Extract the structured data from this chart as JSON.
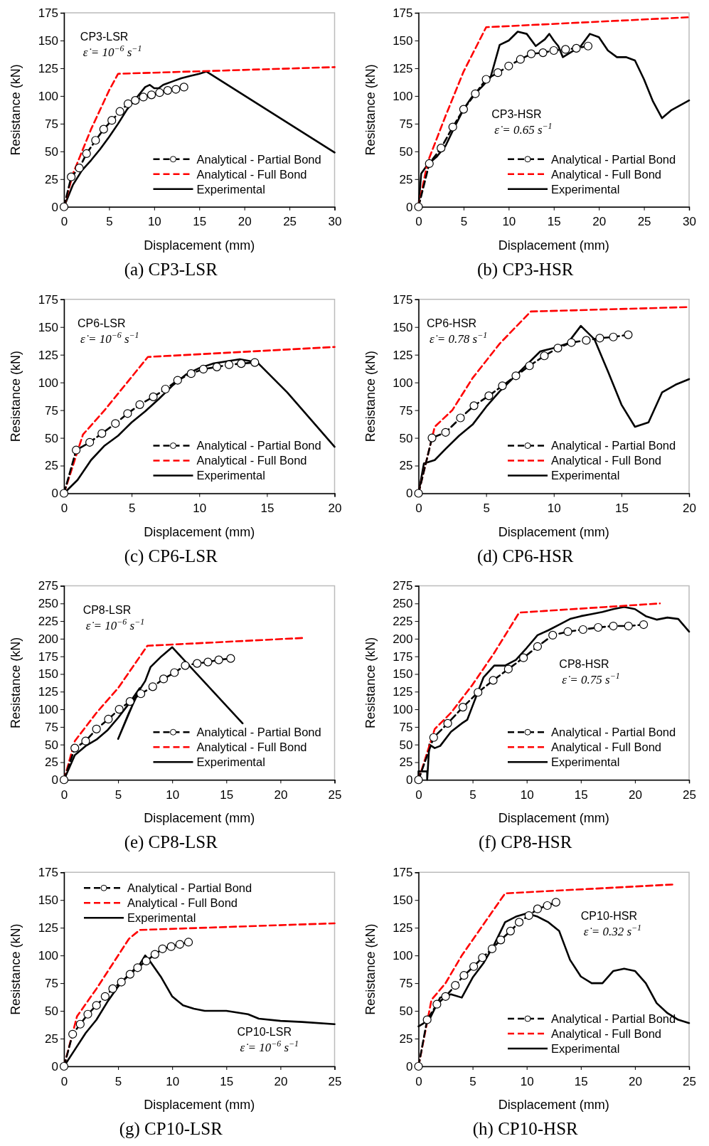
{
  "chart_data": [
    {
      "type": "line",
      "title": "(a) CP3-LSR",
      "xlabel": "Displacement (mm)",
      "ylabel": "Resistance (kN)",
      "annotations": [
        "CP3-LSR",
        "ε̇ = 10$^{−6}$ s$^{−1}$"
      ],
      "legend": "bottom right",
      "grid": false,
      "xlim": [
        0,
        30
      ],
      "ylim": [
        0,
        175
      ],
      "xticks": [
        0,
        5,
        10,
        15,
        20,
        25,
        30
      ],
      "yticks": [
        0,
        25,
        50,
        75,
        100,
        125,
        150,
        175
      ],
      "series": [
        {
          "name": "Analytical - Partial Bond",
          "color": "#000000",
          "line_style": "dashed",
          "marker": "circle",
          "x": [
            0,
            0.8,
            1.7,
            2.5,
            3.5,
            4.4,
            5.3,
            6.2,
            7.1,
            7.9,
            8.8,
            9.7,
            10.6,
            11.5,
            12.4,
            13.3
          ],
          "values": [
            0,
            27,
            35,
            48,
            60,
            70,
            78,
            86,
            93,
            96,
            99,
            101,
            103,
            105,
            106,
            108
          ]
        },
        {
          "name": "Analytical - Full Bond",
          "color": "#ff0000",
          "line_style": "dashed",
          "marker": "none",
          "x": [
            0,
            1,
            3,
            5,
            6,
            30
          ],
          "values": [
            0,
            30,
            70,
            105,
            120,
            126
          ]
        },
        {
          "name": "Experimental",
          "color": "#000000",
          "line_style": "solid",
          "marker": "none",
          "x": [
            0,
            1,
            2,
            3,
            4,
            5,
            6,
            7,
            8,
            9,
            9.5,
            10,
            10.5,
            11,
            12,
            13,
            14,
            15,
            15.8,
            30
          ],
          "values": [
            0,
            20,
            33,
            42,
            52,
            63,
            75,
            88,
            98,
            108,
            110,
            107,
            107,
            110,
            113,
            116,
            118,
            120,
            122,
            49
          ]
        }
      ]
    },
    {
      "type": "line",
      "title": "(b) CP3-HSR",
      "xlabel": "Displacement (mm)",
      "ylabel": "Resistance (kN)",
      "annotations": [
        "CP3-HSR",
        "ε̇ = 0.65 s$^{−1}$"
      ],
      "legend": "bottom right",
      "grid": false,
      "xlim": [
        0,
        30
      ],
      "ylim": [
        0,
        175
      ],
      "xticks": [
        0,
        5,
        10,
        15,
        20,
        25,
        30
      ],
      "yticks": [
        0,
        25,
        50,
        75,
        100,
        125,
        150,
        175
      ],
      "series": [
        {
          "name": "Analytical - Partial Bond",
          "color": "#000000",
          "line_style": "dashed",
          "marker": "circle",
          "x": [
            0,
            1.2,
            2.5,
            3.8,
            5,
            6.3,
            7.5,
            8.8,
            10,
            11.3,
            12.5,
            13.8,
            15,
            16.3,
            17.5,
            18.8
          ],
          "values": [
            0,
            39,
            53,
            72,
            88,
            102,
            115,
            121,
            127,
            133,
            138,
            139,
            141,
            142,
            143,
            145
          ]
        },
        {
          "name": "Analytical - Full Bond",
          "color": "#ff0000",
          "line_style": "dashed",
          "marker": "none",
          "x": [
            0,
            1,
            3,
            5,
            7.5,
            30
          ],
          "values": [
            0,
            40,
            82,
            122,
            162,
            171
          ]
        },
        {
          "name": "Experimental",
          "color": "#000000",
          "line_style": "solid",
          "marker": "none",
          "x": [
            0,
            0.3,
            1,
            2,
            3,
            4,
            5,
            6,
            7,
            8,
            9,
            10,
            11,
            12,
            13,
            14,
            14.5,
            15,
            15.5,
            16,
            17,
            18,
            19,
            20,
            21,
            22,
            23,
            24,
            25,
            26,
            27,
            28,
            30
          ],
          "values": [
            0,
            30,
            38,
            45,
            55,
            72,
            88,
            100,
            108,
            117,
            146,
            150,
            158,
            156,
            145,
            151,
            156,
            150,
            145,
            135,
            140,
            145,
            156,
            153,
            141,
            135,
            135,
            132,
            115,
            95,
            80,
            87,
            96
          ]
        }
      ]
    },
    {
      "type": "line",
      "title": "(c) CP6-LSR",
      "xlabel": "Displacement (mm)",
      "ylabel": "Resistance (kN)",
      "annotations": [
        "CP6-LSR",
        "ε̇ = 10$^{−6}$ s$^{−1}$"
      ],
      "legend": "bottom right",
      "grid": false,
      "xlim": [
        0,
        20
      ],
      "ylim": [
        0,
        175
      ],
      "xticks": [
        0,
        5,
        10,
        15,
        20
      ],
      "yticks": [
        0,
        25,
        50,
        75,
        100,
        125,
        150,
        175
      ],
      "series": [
        {
          "name": "Analytical - Partial Bond",
          "color": "#000000",
          "line_style": "dashed",
          "marker": "circle",
          "x": [
            0,
            0.9,
            1.9,
            2.8,
            3.8,
            4.7,
            5.6,
            6.6,
            7.5,
            8.4,
            9.4,
            10.3,
            11.3,
            12.2,
            13.1,
            14.1
          ],
          "values": [
            0,
            39,
            46,
            54,
            63,
            72,
            80,
            87,
            94,
            102,
            108,
            112,
            114,
            116,
            117,
            118
          ]
        },
        {
          "name": "Analytical - Full Bond",
          "color": "#ff0000",
          "line_style": "dashed",
          "marker": "none",
          "x": [
            0,
            1.4,
            3,
            6.2,
            20
          ],
          "values": [
            0,
            53,
            75,
            123,
            132
          ]
        },
        {
          "name": "Experimental",
          "color": "#000000",
          "line_style": "solid",
          "marker": "none",
          "x": [
            0,
            1,
            2,
            3,
            4,
            4.5,
            5,
            6,
            7,
            8,
            9,
            10,
            11,
            12,
            13,
            14.3,
            16.5,
            18,
            20
          ],
          "values": [
            0,
            12,
            30,
            43,
            52,
            58,
            64,
            74,
            85,
            97,
            107,
            113,
            117,
            119,
            121,
            118,
            91,
            70,
            42
          ]
        }
      ]
    },
    {
      "type": "line",
      "title": "(d) CP6-HSR",
      "xlabel": "Displacement (mm)",
      "ylabel": "Resistance (kN)",
      "annotations": [
        "CP6-HSR",
        "ε̇ = 0.78 s$^{−1}$"
      ],
      "legend": "bottom right",
      "grid": false,
      "xlim": [
        0,
        20
      ],
      "ylim": [
        0,
        175
      ],
      "xticks": [
        0,
        5,
        10,
        15,
        20
      ],
      "yticks": [
        0,
        25,
        50,
        75,
        100,
        125,
        150,
        175
      ],
      "series": [
        {
          "name": "Analytical - Partial Bond",
          "color": "#000000",
          "line_style": "dashed",
          "marker": "circle",
          "x": [
            0,
            1,
            2,
            3.1,
            4.1,
            5.2,
            6.2,
            7.2,
            8.2,
            9.3,
            10.3,
            11.3,
            12.4,
            13.4,
            14.4,
            15.5
          ],
          "values": [
            0,
            50,
            55,
            68,
            79,
            88,
            97,
            106,
            115,
            124,
            131,
            136,
            138,
            140,
            141,
            143
          ]
        },
        {
          "name": "Analytical - Full Bond",
          "color": "#ff0000",
          "line_style": "dashed",
          "marker": "none",
          "x": [
            0,
            1.2,
            2.5,
            4,
            6,
            8.3,
            20
          ],
          "values": [
            0,
            60,
            75,
            104,
            135,
            164,
            168
          ]
        },
        {
          "name": "Experimental",
          "color": "#000000",
          "line_style": "solid",
          "marker": "none",
          "x": [
            0,
            0.4,
            1.2,
            2,
            3,
            4,
            5,
            6,
            7,
            8,
            9,
            10,
            11,
            12,
            13,
            14,
            15,
            16,
            17,
            18,
            19,
            20
          ],
          "values": [
            0,
            27,
            30,
            40,
            52,
            62,
            78,
            92,
            104,
            116,
            128,
            131,
            135,
            151,
            139,
            110,
            80,
            60,
            64,
            91,
            98,
            103
          ]
        }
      ]
    },
    {
      "type": "line",
      "title": "(e) CP8-LSR",
      "xlabel": "Displacement (mm)",
      "ylabel": "Resistance (kN)",
      "annotations": [
        "CP8-LSR",
        "ε̇ = 10$^{−6}$ s$^{−1}$"
      ],
      "legend": "bottom right",
      "grid": false,
      "xlim": [
        0,
        25
      ],
      "ylim": [
        0,
        275
      ],
      "xticks": [
        0,
        5,
        10,
        15,
        20,
        25
      ],
      "yticks": [
        0,
        25,
        50,
        75,
        100,
        125,
        150,
        175,
        200,
        225,
        250,
        275
      ],
      "series": [
        {
          "name": "Analytical - Partial Bond",
          "color": "#000000",
          "line_style": "dashed",
          "marker": "circle",
          "x": [
            0,
            1,
            2,
            3,
            4.1,
            5.1,
            6.1,
            7.1,
            8.2,
            9.2,
            10.2,
            11.2,
            12.3,
            13.3,
            14.3,
            15.4
          ],
          "values": [
            0,
            45,
            55,
            72,
            86,
            100,
            111,
            122,
            132,
            143,
            152,
            162,
            165,
            167,
            170,
            172
          ]
        },
        {
          "name": "Analytical - Full Bond",
          "color": "#ff0000",
          "line_style": "dashed",
          "marker": "none",
          "x": [
            0,
            1,
            3,
            5,
            7.7,
            22
          ],
          "values": [
            0,
            55,
            95,
            130,
            190,
            201
          ]
        },
        {
          "name": "Experimental",
          "color": "#000000",
          "line_style": "solid",
          "marker": "none",
          "x": [
            0,
            1,
            2,
            3,
            4,
            5,
            6,
            7,
            5,
            6,
            7,
            7.5,
            8,
            9,
            10,
            16.5
          ],
          "values": [
            0,
            35,
            48,
            57,
            70,
            88,
            108,
            130,
            58,
            95,
            128,
            140,
            160,
            175,
            188,
            80
          ]
        }
      ]
    },
    {
      "type": "line",
      "title": "(f) CP8-HSR",
      "xlabel": "Displacement (mm)",
      "ylabel": "Resistance (kN)",
      "annotations": [
        "CP8-HSR",
        "ε̇ = 0.75 s$^{−1}$"
      ],
      "legend": "bottom right",
      "grid": false,
      "xlim": [
        0,
        25
      ],
      "ylim": [
        0,
        275
      ],
      "xticks": [
        0,
        5,
        10,
        15,
        20,
        25
      ],
      "yticks": [
        0,
        25,
        50,
        75,
        100,
        125,
        150,
        175,
        200,
        225,
        250,
        275
      ],
      "series": [
        {
          "name": "Analytical - Partial Bond",
          "color": "#000000",
          "line_style": "dashed",
          "marker": "circle",
          "x": [
            0,
            1.4,
            2.7,
            4.1,
            5.5,
            6.9,
            8.3,
            9.7,
            11,
            12.4,
            13.8,
            15.2,
            16.6,
            18,
            19.4,
            20.8
          ],
          "values": [
            0,
            60,
            80,
            103,
            124,
            141,
            157,
            173,
            189,
            205,
            210,
            213,
            216,
            218,
            218,
            220
          ]
        },
        {
          "name": "Analytical - Full Bond",
          "color": "#ff0000",
          "line_style": "dashed",
          "marker": "none",
          "x": [
            0,
            1.5,
            3,
            5,
            7,
            9.3,
            22.3
          ],
          "values": [
            0,
            72,
            95,
            135,
            180,
            237,
            250
          ]
        },
        {
          "name": "Experimental",
          "color": "#000000",
          "line_style": "solid",
          "marker": "none",
          "x": [
            0,
            0,
            0.8,
            0.8,
            1,
            1.5,
            2,
            3,
            4,
            4.5,
            5,
            6,
            7,
            8,
            9,
            10,
            11,
            12,
            13,
            14,
            15,
            16,
            17,
            18,
            19,
            20,
            21,
            22,
            23,
            24,
            25
          ],
          "values": [
            0,
            12,
            12,
            0,
            50,
            45,
            48,
            68,
            80,
            85,
            105,
            145,
            162,
            162,
            170,
            187,
            205,
            212,
            220,
            228,
            232,
            235,
            238,
            242,
            245,
            242,
            232,
            227,
            230,
            228,
            210
          ]
        }
      ]
    },
    {
      "type": "line",
      "title": "(g) CP10-LSR",
      "xlabel": "Displacement (mm)",
      "ylabel": "Resistance (kN)",
      "annotations": [
        "CP10-LSR",
        "ε̇ = 10$^{−6}$ s$^{−1}$"
      ],
      "legend": "top left",
      "grid": false,
      "xlim": [
        0,
        25
      ],
      "ylim": [
        0,
        175
      ],
      "xticks": [
        0,
        5,
        10,
        15,
        20,
        25
      ],
      "yticks": [
        0,
        25,
        50,
        75,
        100,
        125,
        150,
        175
      ],
      "series": [
        {
          "name": "Analytical - Partial Bond",
          "color": "#000000",
          "line_style": "dashed",
          "marker": "circle",
          "x": [
            0,
            0.8,
            1.5,
            2.2,
            3,
            3.8,
            4.5,
            5.3,
            6.1,
            6.8,
            7.6,
            8.4,
            9.1,
            9.9,
            10.7,
            11.5
          ],
          "values": [
            0,
            29,
            38,
            47,
            55,
            63,
            70,
            76,
            83,
            89,
            95,
            101,
            106,
            108,
            110,
            112
          ]
        },
        {
          "name": "Analytical - Full Bond",
          "color": "#ff0000",
          "line_style": "dashed",
          "marker": "none",
          "x": [
            0,
            1.2,
            3,
            6,
            7,
            25
          ],
          "values": [
            0,
            45,
            70,
            115,
            123,
            129
          ]
        },
        {
          "name": "Experimental",
          "color": "#000000",
          "line_style": "solid",
          "marker": "none",
          "x": [
            0,
            1,
            2,
            3,
            4,
            5,
            6,
            7,
            7.5,
            8,
            9,
            10,
            11,
            12,
            13,
            15,
            17,
            18,
            20,
            22,
            25
          ],
          "values": [
            0,
            15,
            30,
            42,
            58,
            72,
            83,
            92,
            100,
            94,
            80,
            63,
            55,
            52,
            50,
            50,
            47,
            43,
            41,
            40,
            38
          ]
        }
      ]
    },
    {
      "type": "line",
      "title": "(h) CP10-HSR",
      "xlabel": "Displacement (mm)",
      "ylabel": "Resistance (kN)",
      "annotations": [
        "CP10-HSR",
        "ε̇ = 0.32 s$^{−1}$"
      ],
      "legend": "bottom right",
      "grid": false,
      "xlim": [
        0,
        25
      ],
      "ylim": [
        0,
        175
      ],
      "xticks": [
        0,
        5,
        10,
        15,
        20,
        25
      ],
      "yticks": [
        0,
        25,
        50,
        75,
        100,
        125,
        150,
        175
      ],
      "series": [
        {
          "name": "Analytical - Partial Bond",
          "color": "#000000",
          "line_style": "dashed",
          "marker": "circle",
          "x": [
            0,
            0.8,
            1.7,
            2.5,
            3.4,
            4.2,
            5.1,
            5.9,
            6.8,
            7.6,
            8.5,
            9.3,
            10.2,
            11,
            11.9,
            12.7
          ],
          "values": [
            0,
            42,
            56,
            63,
            73,
            82,
            90,
            98,
            106,
            114,
            122,
            130,
            136,
            142,
            145,
            148
          ]
        },
        {
          "name": "Analytical - Full Bond",
          "color": "#ff0000",
          "line_style": "dashed",
          "marker": "none",
          "x": [
            0,
            1.2,
            2.5,
            4,
            6,
            8,
            23.5
          ],
          "values": [
            0,
            60,
            75,
            100,
            128,
            156,
            164
          ]
        },
        {
          "name": "Experimental",
          "color": "#000000",
          "line_style": "solid",
          "marker": "none",
          "x": [
            0,
            1,
            2,
            3,
            4,
            5,
            6,
            7,
            8,
            9,
            10,
            11,
            12,
            13,
            14,
            15,
            16,
            17,
            18,
            19,
            20,
            21,
            22,
            23,
            24,
            25
          ],
          "values": [
            36,
            42,
            62,
            65,
            62,
            80,
            93,
            110,
            130,
            135,
            138,
            135,
            130,
            122,
            96,
            81,
            75,
            75,
            86,
            88,
            86,
            75,
            57,
            48,
            42,
            39
          ]
        }
      ]
    }
  ]
}
